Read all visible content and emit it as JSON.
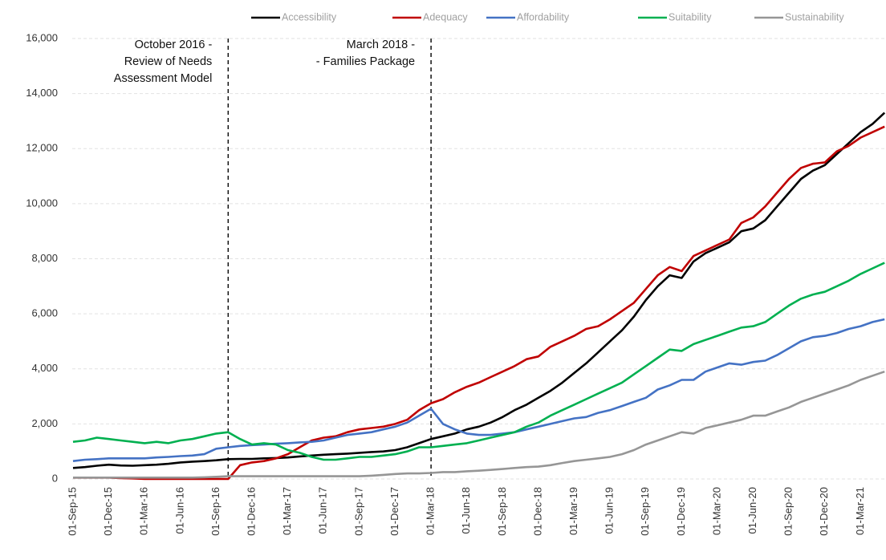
{
  "chart_data": {
    "type": "line",
    "categories": [
      "01-Sep-15",
      null,
      null,
      "01-Dec-15",
      null,
      null,
      "01-Mar-16",
      null,
      null,
      "01-Jun-16",
      null,
      null,
      "01-Sep-16",
      null,
      null,
      "01-Dec-16",
      null,
      null,
      "01-Mar-17",
      null,
      null,
      "01-Jun-17",
      null,
      null,
      "01-Sep-17",
      null,
      null,
      "01-Dec-17",
      null,
      null,
      "01-Mar-18",
      null,
      null,
      "01-Jun-18",
      null,
      null,
      "01-Sep-18",
      null,
      null,
      "01-Dec-18",
      null,
      null,
      "01-Mar-19",
      null,
      null,
      "01-Jun-19",
      null,
      null,
      "01-Sep-19",
      null,
      null,
      "01-Dec-19",
      null,
      null,
      "01-Mar-20",
      null,
      null,
      "01-Jun-20",
      null,
      null,
      "01-Sep-20",
      null,
      null,
      "01-Dec-20",
      null,
      null,
      "01-Mar-21",
      null,
      null
    ],
    "series": [
      {
        "name": "Accessibility",
        "color": "#000000",
        "values": [
          400,
          430,
          480,
          520,
          490,
          480,
          500,
          520,
          550,
          600,
          630,
          650,
          680,
          720,
          730,
          730,
          750,
          760,
          780,
          820,
          850,
          880,
          900,
          920,
          950,
          980,
          1000,
          1050,
          1150,
          1300,
          1450,
          1550,
          1650,
          1800,
          1900,
          2050,
          2250,
          2500,
          2700,
          2950,
          3200,
          3500,
          3850,
          4200,
          4600,
          5000,
          5400,
          5900,
          6500,
          7000,
          7400,
          7300,
          7900,
          8200,
          8400,
          8600,
          9000,
          9100,
          9400,
          9900,
          10400,
          10900,
          11200,
          11400,
          11800,
          12200,
          12600,
          12900,
          13300
        ]
      },
      {
        "name": "Adequacy",
        "color": "#c00000",
        "values": [
          50,
          50,
          50,
          50,
          30,
          20,
          0,
          0,
          0,
          0,
          0,
          0,
          0,
          0,
          500,
          600,
          650,
          750,
          900,
          1150,
          1400,
          1500,
          1550,
          1700,
          1800,
          1850,
          1900,
          2000,
          2150,
          2500,
          2750,
          2900,
          3150,
          3350,
          3500,
          3700,
          3900,
          4100,
          4350,
          4450,
          4800,
          5000,
          5200,
          5450,
          5550,
          5800,
          6100,
          6400,
          6900,
          7400,
          7700,
          7550,
          8100,
          8300,
          8500,
          8700,
          9300,
          9500,
          9900,
          10400,
          10900,
          11300,
          11450,
          11500,
          11900,
          12100,
          12400,
          12600,
          12800
        ]
      },
      {
        "name": "Affordability",
        "color": "#4472c4",
        "values": [
          650,
          700,
          720,
          750,
          750,
          750,
          750,
          780,
          800,
          830,
          850,
          900,
          1100,
          1150,
          1200,
          1230,
          1250,
          1280,
          1300,
          1330,
          1350,
          1400,
          1500,
          1600,
          1650,
          1700,
          1800,
          1900,
          2050,
          2300,
          2550,
          2000,
          1800,
          1650,
          1600,
          1600,
          1650,
          1700,
          1800,
          1900,
          2000,
          2100,
          2200,
          2250,
          2400,
          2500,
          2650,
          2800,
          2950,
          3250,
          3400,
          3600,
          3600,
          3900,
          4050,
          4200,
          4150,
          4250,
          4300,
          4500,
          4750,
          5000,
          5150,
          5200,
          5300,
          5450,
          5550,
          5700,
          5800
        ]
      },
      {
        "name": "Suitability",
        "color": "#00b050",
        "values": [
          1350,
          1400,
          1500,
          1450,
          1400,
          1350,
          1300,
          1350,
          1300,
          1400,
          1450,
          1550,
          1650,
          1700,
          1450,
          1250,
          1300,
          1250,
          1050,
          950,
          800,
          700,
          700,
          750,
          800,
          800,
          850,
          900,
          1000,
          1150,
          1150,
          1200,
          1250,
          1300,
          1400,
          1500,
          1600,
          1700,
          1900,
          2050,
          2300,
          2500,
          2700,
          2900,
          3100,
          3300,
          3500,
          3800,
          4100,
          4400,
          4700,
          4650,
          4900,
          5050,
          5200,
          5350,
          5500,
          5550,
          5700,
          6000,
          6300,
          6550,
          6700,
          6800,
          7000,
          7200,
          7450,
          7650,
          7850
        ]
      },
      {
        "name": "Sustainability",
        "color": "#969696",
        "values": [
          50,
          50,
          50,
          50,
          50,
          50,
          50,
          50,
          50,
          50,
          50,
          60,
          80,
          100,
          100,
          100,
          100,
          100,
          100,
          100,
          100,
          100,
          100,
          100,
          100,
          120,
          150,
          180,
          200,
          200,
          220,
          250,
          250,
          280,
          300,
          330,
          360,
          400,
          430,
          450,
          500,
          580,
          650,
          700,
          750,
          800,
          900,
          1050,
          1250,
          1400,
          1550,
          1700,
          1650,
          1850,
          1950,
          2050,
          2150,
          2300,
          2300,
          2450,
          2600,
          2800,
          2950,
          3100,
          3250,
          3400,
          3600,
          3750,
          3900
        ]
      }
    ],
    "ylim": [
      0,
      16000
    ],
    "yticks": [
      0,
      {
        "value": 2000,
        "label": "2,000"
      },
      {
        "value": 4000,
        "label": "4,000"
      },
      {
        "value": 6000,
        "label": "6,000"
      },
      {
        "value": 8000,
        "label": "8,000"
      },
      {
        "value": 10000,
        "label": "10,000"
      },
      {
        "value": 12000,
        "label": "12,000"
      },
      {
        "value": 14000,
        "label": "14,000"
      },
      {
        "value": 16000,
        "label": "16,000"
      }
    ],
    "grid": true,
    "legend": "top",
    "annotations": [
      {
        "text": [
          "October 2016 -",
          "Review of Needs",
          "Assessment Model"
        ]
      },
      {
        "text": [
          "March 2018 -",
          "- Families Package"
        ]
      }
    ]
  }
}
